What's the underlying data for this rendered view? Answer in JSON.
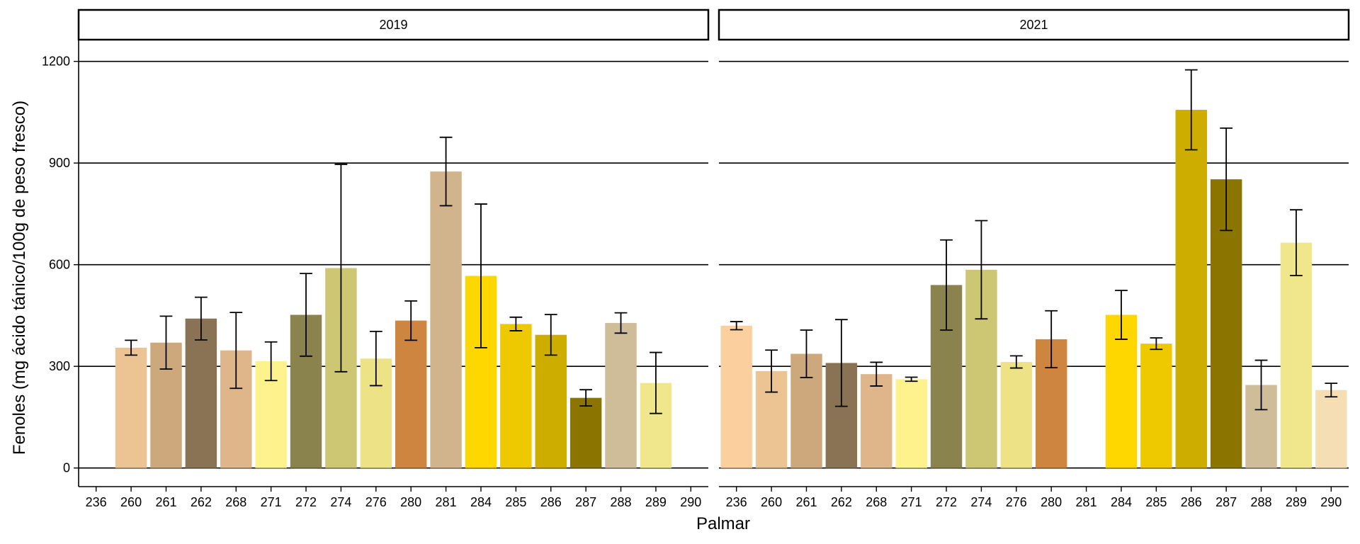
{
  "chart_data": {
    "type": "bar",
    "xlabel": "Palmar",
    "ylabel": "Fenoles (mg ácido tánico/100g de peso fresco)",
    "ylim": [
      -55,
      1262
    ],
    "yticks": [
      0,
      300,
      600,
      900,
      1200
    ],
    "grid": "horizontal major lines",
    "categories": [
      "236",
      "260",
      "261",
      "262",
      "268",
      "271",
      "272",
      "274",
      "276",
      "280",
      "281",
      "284",
      "285",
      "286",
      "287",
      "288",
      "289",
      "290"
    ],
    "colors": {
      "236": "#FCD09E",
      "260": "#ECC392",
      "261": "#CDA87D",
      "262": "#8A7355",
      "268": "#DFB68A",
      "271": "#FDF28B",
      "272": "#8B834E",
      "274": "#CDC672",
      "276": "#EDE386",
      "280": "#CD853F",
      "281": "#D2B48C",
      "284": "#FFD700",
      "285": "#EEC900",
      "286": "#CDAD00",
      "287": "#8B7500",
      "288": "#CFBC98",
      "289": "#F0E68C",
      "290": "#F5DEB3"
    },
    "panels": [
      {
        "label": "2019",
        "values": [
          null,
          355,
          370,
          441,
          347,
          315,
          452,
          590,
          323,
          435,
          875,
          567,
          425,
          393,
          207,
          428,
          251,
          null
        ],
        "errors": [
          null,
          22,
          78,
          63,
          112,
          57,
          122,
          306,
          80,
          58,
          101,
          212,
          20,
          60,
          24,
          30,
          90,
          null
        ]
      },
      {
        "label": "2021",
        "values": [
          420,
          286,
          337,
          310,
          277,
          262,
          540,
          585,
          313,
          380,
          null,
          452,
          367,
          1057,
          852,
          245,
          665,
          230
        ],
        "errors": [
          12,
          62,
          70,
          128,
          35,
          6,
          133,
          145,
          18,
          84,
          null,
          72,
          17,
          118,
          151,
          73,
          97,
          20
        ]
      }
    ]
  }
}
